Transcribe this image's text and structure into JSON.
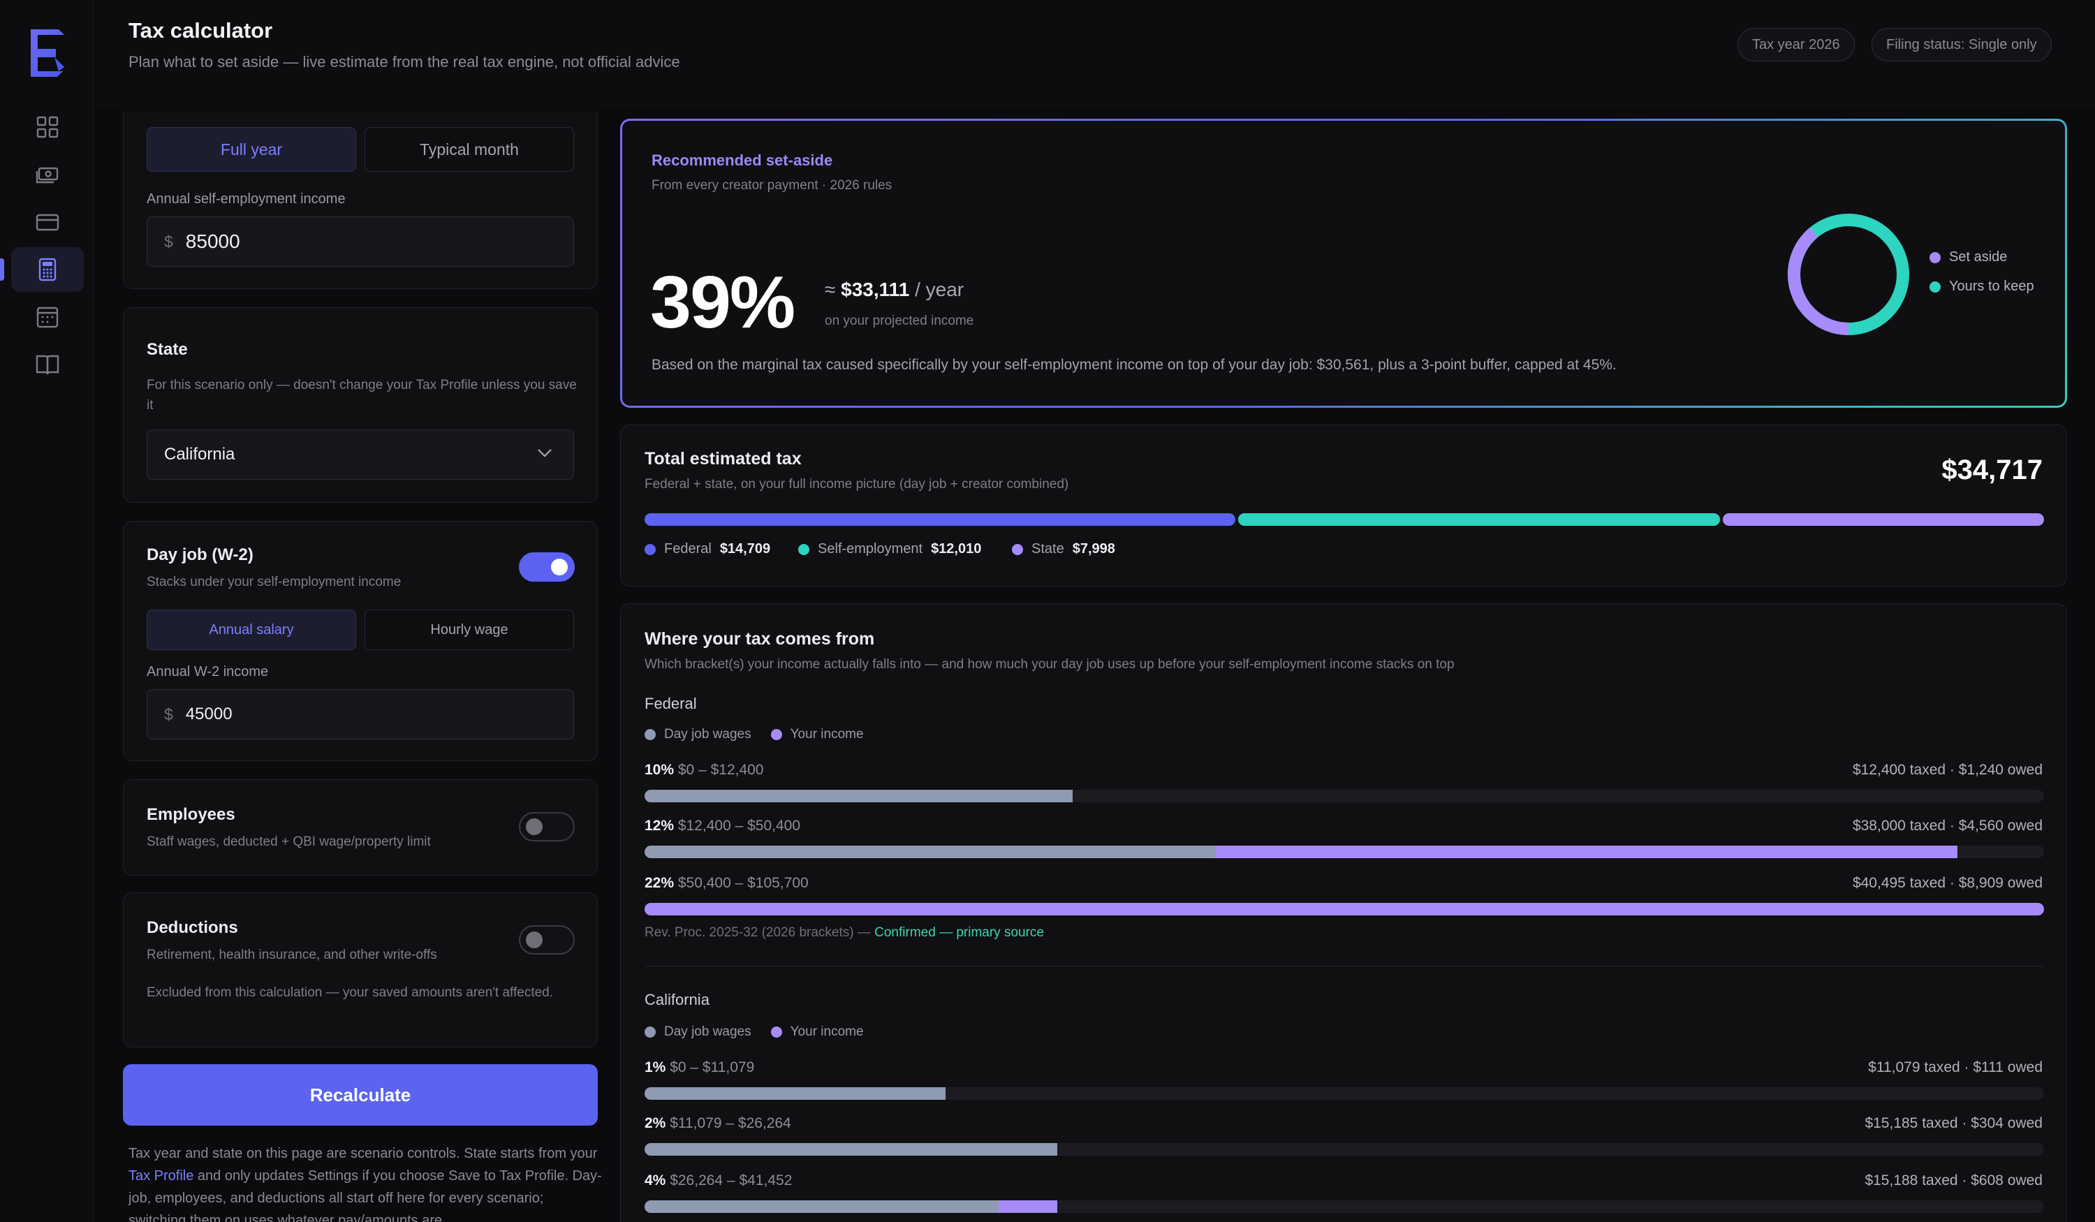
{
  "header": {
    "title": "Tax calculator",
    "subtitle": "Plan what to set aside — live estimate from the real tax engine, not official advice",
    "tax_year_pill": "Tax year 2026",
    "filing_pill": "Filing status: Single only"
  },
  "sidebar": {
    "items": [
      {
        "icon": "dashboard-icon"
      },
      {
        "icon": "cash-icon"
      },
      {
        "icon": "card-icon"
      },
      {
        "icon": "calculator-icon",
        "active": true
      },
      {
        "icon": "calendar-icon"
      },
      {
        "icon": "book-icon"
      }
    ]
  },
  "income": {
    "period_options": [
      "Full year",
      "Typical month"
    ],
    "selected_period": "Full year",
    "field_label": "Annual self-employment income",
    "currency": "$",
    "value": "85000"
  },
  "state": {
    "title": "State",
    "description": "For this scenario only — doesn't change your Tax Profile unless you save it",
    "selected": "California"
  },
  "dayjob": {
    "title": "Day job (W-2)",
    "description": "Stacks under your self-employment income",
    "enabled": true,
    "mode_options": [
      "Annual salary",
      "Hourly wage"
    ],
    "selected_mode": "Annual salary",
    "field_label": "Annual W-2 income",
    "currency": "$",
    "value": "45000"
  },
  "employees": {
    "title": "Employees",
    "description": "Staff wages, deducted + QBI wage/property limit",
    "enabled": false
  },
  "deductions": {
    "title": "Deductions",
    "description": "Retirement, health insurance, and other write-offs",
    "enabled": false,
    "note": "Excluded from this calculation — your saved amounts aren't affected."
  },
  "actions": {
    "recalculate_label": "Recalculate"
  },
  "footnote": {
    "before_link": "Tax year and state on this page are scenario controls. State starts from your ",
    "link": "Tax Profile",
    "after_link": " and only updates Settings if you choose Save to Tax Profile. Day-job, employees, and deductions all start off here for every scenario; switching them on uses whatever pay/amounts are"
  },
  "setaside": {
    "label": "Recommended set-aside",
    "sublabel": "From every creator payment · 2026 rules",
    "percent": "39%",
    "percent_value": 39,
    "approx_prefix": "≈",
    "approx_amount": "$33,111",
    "approx_suffix": "/ year",
    "approx_sub": "on your projected income",
    "note": "Based on the marginal tax caused specifically by your self-employment income on top of your day job: $30,561, plus a 3-point buffer, capped at 45%.",
    "legend": [
      {
        "label": "Set aside",
        "color": "#a78bfa"
      },
      {
        "label": "Yours to keep",
        "color": "#2dd4bf"
      }
    ]
  },
  "total": {
    "title": "Total estimated tax",
    "subtitle": "Federal + state, on your full income picture (day job + creator combined)",
    "value": "$34,717",
    "parts": [
      {
        "label": "Federal",
        "amount": "$14,709",
        "value": 14709,
        "color": "#5b63f0"
      },
      {
        "label": "Self-employment",
        "amount": "$12,010",
        "value": 12010,
        "color": "#2dd4bf"
      },
      {
        "label": "State",
        "amount": "$7,998",
        "value": 7998,
        "color": "#a78bfa"
      }
    ]
  },
  "brackets": {
    "title": "Where your tax comes from",
    "subtitle": "Which bracket(s) your income actually falls into — and how much your day job uses up before your self-employment income stacks on top",
    "legend_day": "Day job wages",
    "legend_you": "Your income",
    "day_color": "#8f9bb3",
    "you_color": "#a78bfa",
    "federal": {
      "name": "Federal",
      "rows": [
        {
          "rate": "10%",
          "range": "$0 – $12,400",
          "summary": "$12,400 taxed · $1,240 owed",
          "day_frac": 0.306,
          "you_frac": 0.0
        },
        {
          "rate": "12%",
          "range": "$12,400 – $50,400",
          "summary": "$38,000 taxed · $4,560 owed",
          "day_frac": 0.408,
          "you_frac": 0.53
        },
        {
          "rate": "22%",
          "range": "$50,400 – $105,700",
          "summary": "$40,495 taxed · $8,909 owed",
          "day_frac": 0.0,
          "you_frac": 1.0
        }
      ],
      "source_prefix": "Rev. Proc. 2025-32 (2026 brackets) —",
      "source_status": "Confirmed — primary source"
    },
    "california": {
      "name": "California",
      "rows": [
        {
          "rate": "1%",
          "range": "$0 – $11,079",
          "summary": "$11,079 taxed · $111 owed",
          "day_frac": 0.215,
          "you_frac": 0.0
        },
        {
          "rate": "2%",
          "range": "$11,079 – $26,264",
          "summary": "$15,185 taxed · $304 owed",
          "day_frac": 0.295,
          "you_frac": 0.0
        },
        {
          "rate": "4%",
          "range": "$26,264 – $41,452",
          "summary": "$15,188 taxed · $608 owed",
          "day_frac": 0.253,
          "you_frac": 0.042
        }
      ]
    }
  }
}
